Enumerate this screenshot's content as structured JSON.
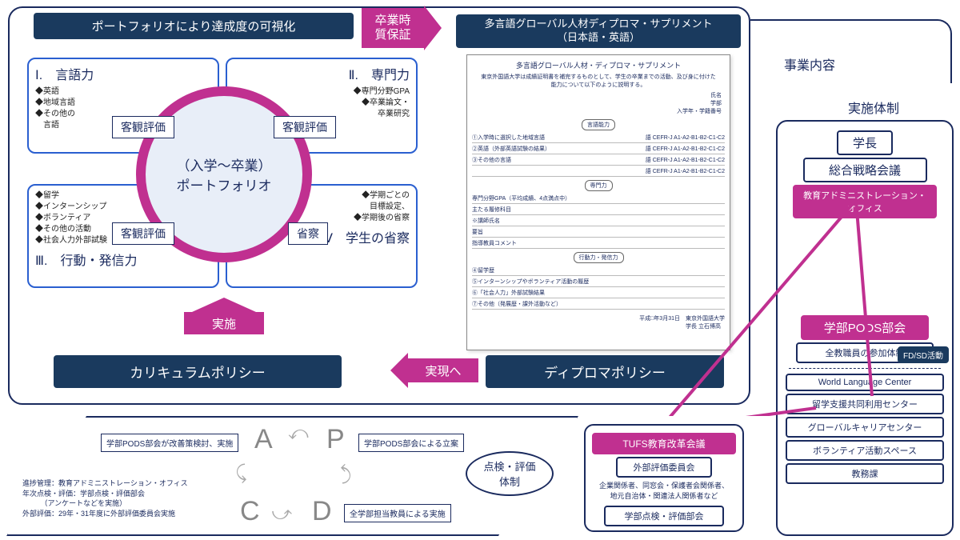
{
  "colors": {
    "navy": "#1a3a5e",
    "magenta": "#c03090",
    "blue_border": "#2a5fd0",
    "circle_fill": "#e8eef8",
    "text": "#1a2a5e",
    "grey": "#888888"
  },
  "portfolio": {
    "title": "ポートフォリオにより達成度の可視化",
    "center_line1": "（入学～卒業）",
    "center_line2": "ポートフォリオ",
    "quadrants": [
      {
        "num": "Ⅰ.",
        "title": "言語力",
        "items": [
          "◆英語",
          "◆地域言語",
          "◆その他の",
          "　言語"
        ],
        "tag": "客観評価"
      },
      {
        "num": "Ⅱ.",
        "title": "専門力",
        "items": [
          "◆専門分野GPA",
          "◆卒業論文・",
          "　卒業研究"
        ],
        "tag": "客観評価"
      },
      {
        "num": "Ⅲ.",
        "title": "行動・発信力",
        "items": [
          "◆留学",
          "◆インターンシップ",
          "◆ボランティア",
          "◆その他の活動",
          "◆社会人力外部試験"
        ],
        "tag": "客観評価"
      },
      {
        "num": "Ⅳ",
        "title": "学生の省察",
        "items": [
          "◆学期ごとの",
          "　目標設定、",
          "◆学期後の省察"
        ],
        "tag": "省察"
      }
    ],
    "curriculum_policy": "カリキュラムポリシー",
    "diploma_policy": "ディプロマポリシー"
  },
  "arrows": {
    "graduation": "卒業時\n質保証",
    "implement": "実施",
    "realize": "実現へ"
  },
  "diploma_supplement": {
    "title_line1": "多言語グローバル人材ディプロマ・サプリメント",
    "title_line2": "（日本語・英語）",
    "doc_title": "多言語グローバル人材・ディプロマ・サプリメント",
    "doc_intro": "東京外国語大学は成績証明書を補完するものとして、学生の卒業までの活動、及び身に付けた能力について以下のように説明する。",
    "doc_fields_right": [
      "氏名",
      "学部",
      "入学年・学籍番号"
    ],
    "doc_sections": [
      {
        "pill": "言語能力",
        "rows": [
          "①入学時に選択した地域言語",
          "②英語（外部英語試験の結果）",
          "③その他の言語"
        ],
        "right": [
          "語 CEFR-J A1-A2-B1-B2-C1-C2",
          "語 CEFR-J A1-A2-B1-B2-C1-C2",
          "語 CEFR-J A1-A2-B1-B2-C1-C2",
          "語 CEFR-J A1-A2-B1-B2-C1-C2"
        ]
      },
      {
        "pill": "専門力",
        "rows": [
          "専門分野GPA（平均成績、4点満点中）",
          "主たる履修科目"
        ]
      },
      {
        "pill": "",
        "rows": [
          "※講師氏名",
          "要旨",
          "指導教員コメント"
        ]
      },
      {
        "pill": "行動力・発信力",
        "rows": [
          "④留学歴",
          "⑤インターンシップやボランティア活動の履歴",
          "⑥「社会人力」外部試験結果",
          "⑦その他（発展歴・課外活動など）"
        ]
      }
    ],
    "doc_date": "平成□年3月31日",
    "doc_sign": "東京外国語大学\n学長 立石博高"
  },
  "right_labels": {
    "business": "事業内容",
    "structure": "実施体制"
  },
  "org": {
    "president": "学長",
    "strategy": "総合戦略会議",
    "admin_office": "教育アドミニストレーション・\nオフィス",
    "pods": "学部PODS部会",
    "all_staff": "全教職員の参加体制",
    "fdsd": "FD/SD活動",
    "centers": [
      "World Language Center",
      "留学支援共同利用センター",
      "グローバルキャリアセンター",
      "ボランティア活動スペース",
      "教務課"
    ]
  },
  "pdca": {
    "letters": [
      "A",
      "P",
      "C",
      "D"
    ],
    "box_a": "学部PODS部会が改善策検討、実施",
    "box_p": "学部PODS部会による立案",
    "box_c_notes": "進捗管理：教育アドミニストレーション・オフィス\n年次点検・評価：学部点検・評価部会\n　　　（アンケートなどを実施）\n外部評価：29年・31年度に外部評価委員会実施",
    "box_d": "全学部担当教員による実施",
    "title": "点検・評価\n体制"
  },
  "eval": {
    "tufs": "TUFS教育改革会議",
    "external": "外部評価委員会",
    "external_detail": "企業関係者、同窓会・保護者会関係者、\n地元自治体・関連法人関係者など",
    "dept_eval": "学部点検・評価部会"
  }
}
